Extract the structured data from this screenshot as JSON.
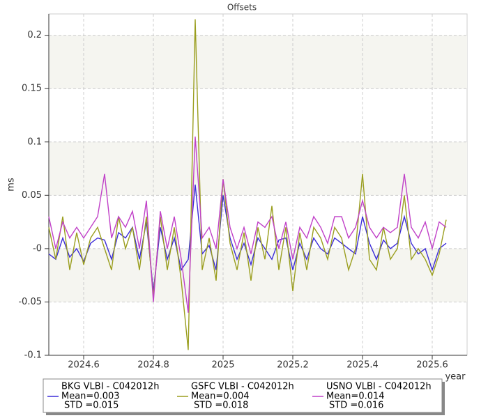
{
  "chart_data": {
    "type": "line",
    "title": "Offsets",
    "x_label": "year",
    "y_label": "ms",
    "x": [
      2024.5,
      2024.52,
      2024.54,
      2024.56,
      2024.58,
      2024.6,
      2024.62,
      2024.64,
      2024.66,
      2024.68,
      2024.7,
      2024.72,
      2024.74,
      2024.76,
      2024.78,
      2024.8,
      2024.82,
      2024.84,
      2024.86,
      2024.88,
      2024.9,
      2024.92,
      2024.94,
      2024.96,
      2024.98,
      2025,
      2025.02,
      2025.04,
      2025.06,
      2025.08,
      2025.1,
      2025.12,
      2025.14,
      2025.16,
      2025.18,
      2025.2,
      2025.22,
      2025.24,
      2025.26,
      2025.28,
      2025.3,
      2025.32,
      2025.34,
      2025.36,
      2025.38,
      2025.4,
      2025.42,
      2025.44,
      2025.46,
      2025.48,
      2025.5,
      2025.52,
      2025.54,
      2025.56,
      2025.58,
      2025.6,
      2025.62,
      2025.64
    ],
    "series": [
      {
        "name": "BKG VLBI - C042012h",
        "mean_label": "Mean=0.003",
        "std_label": "STD =0.015",
        "color": "#3b2bd8",
        "values": [
          -0.005,
          -0.01,
          0.01,
          -0.008,
          0.0,
          -0.012,
          0.005,
          0.01,
          0.008,
          -0.01,
          0.015,
          0.01,
          0.02,
          -0.01,
          0.025,
          -0.04,
          0.02,
          -0.01,
          0.01,
          -0.02,
          -0.01,
          0.06,
          -0.005,
          0.003,
          -0.02,
          0.05,
          0.01,
          -0.01,
          0.005,
          -0.015,
          0.01,
          0.0,
          -0.01,
          0.008,
          0.01,
          -0.02,
          0.005,
          -0.01,
          0.01,
          0.0,
          -0.005,
          0.01,
          0.005,
          0.0,
          -0.005,
          0.03,
          0.005,
          -0.01,
          0.008,
          0.0,
          0.005,
          0.03,
          0.005,
          -0.005,
          0.0,
          -0.02,
          0.0,
          0.005
        ]
      },
      {
        "name": "GSFC VLBI - C042012h",
        "mean_label": "Mean=0.004",
        "std_label": "STD =0.018",
        "color": "#9a9e1e",
        "values": [
          0.02,
          -0.01,
          0.03,
          -0.02,
          0.015,
          -0.015,
          0.01,
          0.02,
          0.0,
          -0.02,
          0.03,
          0.0,
          0.02,
          -0.02,
          0.03,
          -0.045,
          0.03,
          -0.02,
          0.02,
          -0.03,
          -0.095,
          0.215,
          -0.02,
          0.01,
          -0.03,
          0.065,
          0.005,
          -0.02,
          0.015,
          -0.03,
          0.02,
          -0.01,
          0.04,
          -0.02,
          0.02,
          -0.04,
          0.015,
          -0.02,
          0.02,
          0.01,
          -0.01,
          0.02,
          0.01,
          -0.02,
          0.0,
          0.07,
          -0.01,
          -0.02,
          0.02,
          -0.01,
          0.0,
          0.05,
          -0.01,
          0.0,
          -0.01,
          -0.025,
          -0.005,
          0.027
        ]
      },
      {
        "name": "USNO VLBI - C042012h",
        "mean_label": "Mean=0.014",
        "std_label": "STD =0.016",
        "color": "#c040c8",
        "values": [
          0.03,
          0.0,
          0.025,
          0.01,
          0.02,
          0.01,
          0.02,
          0.03,
          0.07,
          0.01,
          0.03,
          0.02,
          0.035,
          0.0,
          0.045,
          -0.05,
          0.035,
          0.0,
          0.03,
          -0.01,
          -0.06,
          0.105,
          0.01,
          0.02,
          0.0,
          0.065,
          0.02,
          0.0,
          0.02,
          -0.005,
          0.025,
          0.02,
          0.03,
          0.0,
          0.025,
          -0.01,
          0.02,
          0.01,
          0.03,
          0.02,
          0.005,
          0.03,
          0.03,
          0.01,
          0.02,
          0.045,
          0.02,
          0.01,
          0.02,
          0.015,
          0.02,
          0.07,
          0.02,
          0.01,
          0.025,
          0.0,
          0.025,
          0.02
        ]
      }
    ],
    "xlim": [
      2024.5,
      2025.7
    ],
    "ylim": [
      -0.1,
      0.22
    ],
    "xticks": [
      2024.6,
      2024.8,
      2025,
      2025.2,
      2025.4,
      2025.6
    ],
    "yticks": [
      -0.1,
      -0.05,
      {
        "value": 0,
        "label": "-0"
      },
      0.05,
      0.1,
      0.15,
      0.2
    ],
    "grid": true
  }
}
